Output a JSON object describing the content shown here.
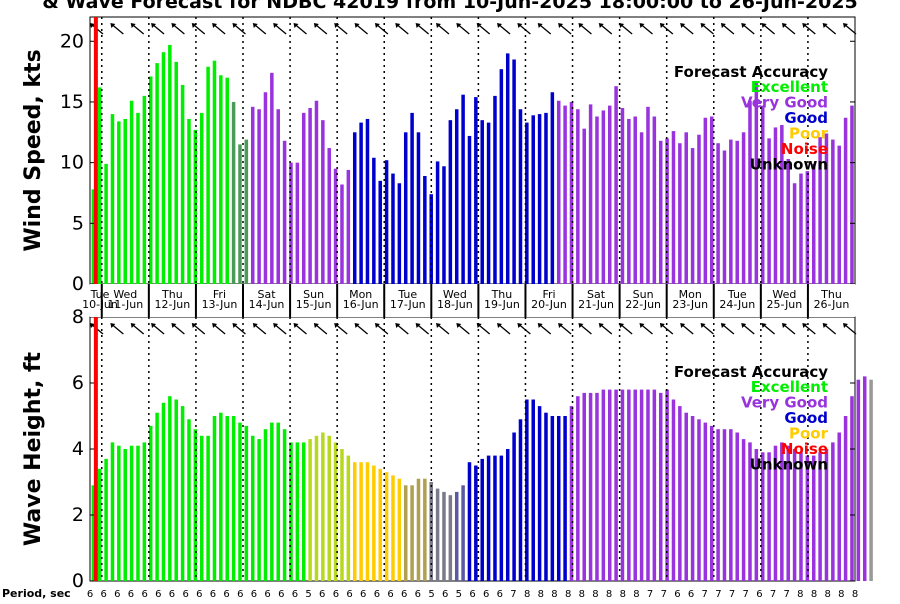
{
  "chart_data": {
    "title": "& Wave Forecast for NDBC 42019 from 10-Jun-2025 18:00:00 to 26-Jun-2025",
    "type": "bar",
    "x_start": "10-Jun-2025 18:00",
    "x_step_hours": 3,
    "colors": {
      "Excellent": "#00ee00",
      "Very Good": "#9933dd",
      "Good": "#0000cc",
      "Poor": "#ffcc00",
      "Noise": "#ff0000",
      "Unknown": "#000000",
      "transition_green": "#4a9a5a",
      "transition_yellow_green": "#b8d820",
      "transition_yellow_gray": "#b0a050",
      "transition_gray": "#7a7a8a",
      "transition_blue_gray": "#5a5aa0"
    },
    "legend": {
      "title": "Forecast Accuracy",
      "entries": [
        "Excellent",
        "Very Good",
        "Good",
        "Poor",
        "Noise",
        "Unknown"
      ],
      "placement": "right"
    },
    "days": [
      {
        "day": "Tue",
        "date": "10-Jun"
      },
      {
        "day": "Wed",
        "date": "11-Jun"
      },
      {
        "day": "Thu",
        "date": "12-Jun"
      },
      {
        "day": "Fri",
        "date": "13-Jun"
      },
      {
        "day": "Sat",
        "date": "14-Jun"
      },
      {
        "day": "Sun",
        "date": "15-Jun"
      },
      {
        "day": "Mon",
        "date": "16-Jun"
      },
      {
        "day": "Tue",
        "date": "17-Jun"
      },
      {
        "day": "Wed",
        "date": "18-Jun"
      },
      {
        "day": "Thu",
        "date": "19-Jun"
      },
      {
        "day": "Fri",
        "date": "20-Jun"
      },
      {
        "day": "Sat",
        "date": "21-Jun"
      },
      {
        "day": "Sun",
        "date": "22-Jun"
      },
      {
        "day": "Mon",
        "date": "23-Jun"
      },
      {
        "day": "Tue",
        "date": "24-Jun"
      },
      {
        "day": "Wed",
        "date": "25-Jun"
      },
      {
        "day": "Thu",
        "date": "26-Jun"
      }
    ],
    "wind": {
      "ylabel": "Wind Speed, kts",
      "ylim": [
        0,
        22
      ],
      "yticks": [
        0,
        5,
        10,
        15,
        20
      ],
      "values": [
        7.8,
        16.2,
        9.9,
        14.0,
        13.4,
        13.6,
        15.1,
        14.1,
        15.5,
        17.1,
        18.2,
        19.1,
        19.7,
        18.3,
        16.4,
        13.6,
        12.7,
        14.1,
        17.9,
        18.4,
        17.2,
        17.0,
        15.0,
        11.5,
        11.9,
        14.6,
        14.4,
        15.8,
        17.4,
        14.4,
        11.8,
        10.0,
        10.0,
        14.1,
        14.5,
        15.1,
        13.5,
        11.2,
        9.5,
        8.2,
        9.4,
        12.5,
        13.3,
        13.6,
        10.4,
        8.5,
        10.2,
        9.1,
        8.3,
        12.5,
        14.1,
        12.5,
        8.9,
        7.4,
        10.1,
        9.7,
        13.5,
        14.4,
        15.6,
        12.2,
        15.4,
        13.5,
        13.3,
        15.5,
        17.7,
        19.0,
        18.5,
        14.4,
        13.3,
        13.9,
        14.0,
        14.1,
        15.8,
        15.1,
        14.7,
        15.0,
        14.4,
        12.8,
        14.8,
        13.8,
        14.3,
        14.7,
        16.3,
        14.5,
        13.6,
        13.8,
        12.5,
        14.6,
        13.8,
        11.8,
        12.0,
        12.6,
        11.6,
        12.5,
        11.2,
        12.3,
        13.7,
        13.8,
        11.6,
        11.0,
        11.9,
        11.8,
        12.5,
        15.1,
        16.6,
        14.7,
        12.0,
        12.9,
        13.1,
        10.3,
        8.3,
        9.1,
        9.3,
        9.9,
        12.1,
        12.4,
        11.9,
        11.4,
        13.7,
        14.7
      ],
      "colors": [
        "Excellent",
        "Excellent",
        "Excellent",
        "Excellent",
        "Excellent",
        "Excellent",
        "Excellent",
        "Excellent",
        "Excellent",
        "Excellent",
        "Excellent",
        "Excellent",
        "Excellent",
        "Excellent",
        "Excellent",
        "Excellent",
        "Excellent",
        "Excellent",
        "Excellent",
        "Excellent",
        "Excellent",
        "Excellent",
        "transition_green",
        "transition_green",
        "transition_green",
        "Very Good",
        "Very Good",
        "Very Good",
        "Very Good",
        "Very Good",
        "Very Good",
        "Very Good",
        "Very Good",
        "Very Good",
        "Very Good",
        "Very Good",
        "Very Good",
        "Very Good",
        "Very Good",
        "Very Good",
        "Very Good",
        "Good",
        "Good",
        "Good",
        "Good",
        "Good",
        "Good",
        "Good",
        "Good",
        "Good",
        "Good",
        "Good",
        "Good",
        "Good",
        "Good",
        "Good",
        "Good",
        "Good",
        "Good",
        "Good",
        "Good",
        "Good",
        "Good",
        "Good",
        "Good",
        "Good",
        "Good",
        "Good",
        "Good",
        "Good",
        "Good",
        "Good",
        "Good",
        "Very Good",
        "Very Good",
        "Very Good",
        "Very Good",
        "Very Good",
        "Very Good",
        "Very Good",
        "Very Good",
        "Very Good",
        "Very Good",
        "Very Good",
        "Very Good",
        "Very Good",
        "Very Good",
        "Very Good",
        "Very Good",
        "Very Good",
        "Very Good",
        "Very Good",
        "Very Good",
        "Very Good",
        "Very Good",
        "Very Good",
        "Very Good",
        "Very Good",
        "Very Good",
        "Very Good",
        "Very Good",
        "Very Good",
        "Very Good",
        "Very Good",
        "Very Good",
        "Very Good",
        "Very Good",
        "Very Good",
        "Very Good",
        "Very Good",
        "Very Good",
        "Very Good",
        "Very Good",
        "Very Good",
        "Very Good",
        "Very Good",
        "Very Good",
        "Very Good",
        "Very Good",
        "Very Good",
        "Very Good"
      ]
    },
    "wave": {
      "ylabel": "Wave Height, ft",
      "ylim": [
        0,
        8
      ],
      "yticks": [
        0,
        2,
        4,
        6,
        8
      ],
      "values": [
        2.9,
        3.4,
        3.7,
        4.2,
        4.1,
        4.0,
        4.1,
        4.1,
        4.2,
        4.7,
        5.1,
        5.4,
        5.6,
        5.5,
        5.3,
        4.9,
        4.6,
        4.4,
        4.4,
        5.0,
        5.1,
        5.0,
        5.0,
        4.8,
        4.7,
        4.4,
        4.3,
        4.6,
        4.8,
        4.8,
        4.6,
        4.2,
        4.2,
        4.2,
        4.3,
        4.4,
        4.5,
        4.4,
        4.2,
        4.0,
        3.8,
        3.6,
        3.6,
        3.6,
        3.5,
        3.4,
        3.3,
        3.2,
        3.1,
        2.9,
        2.9,
        3.1,
        3.1,
        3.0,
        2.8,
        2.7,
        2.6,
        2.7,
        2.9,
        3.6,
        3.5,
        3.7,
        3.8,
        3.8,
        3.8,
        4.0,
        4.5,
        4.9,
        5.5,
        5.5,
        5.3,
        5.1,
        5.0,
        5.0,
        5.0,
        5.3,
        5.6,
        5.7,
        5.7,
        5.7,
        5.8,
        5.8,
        5.8,
        5.8,
        5.8,
        5.8,
        5.8,
        5.8,
        5.8,
        5.7,
        5.8,
        5.5,
        5.3,
        5.1,
        5.0,
        4.9,
        4.8,
        4.7,
        4.6,
        4.6,
        4.6,
        4.5,
        4.3,
        4.2,
        4.0,
        3.9,
        3.9,
        4.1,
        4.2,
        4.1,
        4.0,
        3.9,
        3.8,
        3.8,
        3.9,
        4.0,
        4.2,
        4.5,
        5.0,
        5.6,
        6.1,
        6.2,
        6.1
      ],
      "colors": [
        "Excellent",
        "Excellent",
        "Excellent",
        "Excellent",
        "Excellent",
        "Excellent",
        "Excellent",
        "Excellent",
        "Excellent",
        "Excellent",
        "Excellent",
        "Excellent",
        "Excellent",
        "Excellent",
        "Excellent",
        "Excellent",
        "Excellent",
        "Excellent",
        "Excellent",
        "Excellent",
        "Excellent",
        "Excellent",
        "Excellent",
        "Excellent",
        "Excellent",
        "Excellent",
        "Excellent",
        "Excellent",
        "Excellent",
        "Excellent",
        "Excellent",
        "Excellent",
        "Excellent",
        "Excellent",
        "transition_yellow_green",
        "transition_yellow_green",
        "transition_yellow_green",
        "transition_yellow_green",
        "transition_yellow_green",
        "transition_yellow_green",
        "transition_yellow_green",
        "Poor",
        "Poor",
        "Poor",
        "Poor",
        "Poor",
        "Poor",
        "Poor",
        "Poor",
        "transition_yellow_gray",
        "transition_yellow_gray",
        "transition_yellow_gray",
        "transition_yellow_gray",
        "transition_gray",
        "transition_gray",
        "transition_gray",
        "transition_gray",
        "transition_blue_gray",
        "transition_blue_gray",
        "Good",
        "Good",
        "Good",
        "Good",
        "Good",
        "Good",
        "Good",
        "Good",
        "Good",
        "Good",
        "Good",
        "Good",
        "Good",
        "Good",
        "Good",
        "Good",
        "Very Good",
        "Very Good",
        "Very Good",
        "Very Good",
        "Very Good",
        "Very Good",
        "Very Good",
        "Very Good",
        "Very Good",
        "Very Good",
        "Very Good",
        "Very Good",
        "Very Good",
        "Very Good",
        "Very Good",
        "Very Good",
        "Very Good",
        "Very Good",
        "Very Good",
        "Very Good",
        "Very Good",
        "Very Good",
        "Very Good",
        "Very Good",
        "Very Good",
        "Very Good",
        "Very Good",
        "Very Good",
        "Very Good",
        "Very Good",
        "Very Good",
        "Very Good",
        "Very Good",
        "Very Good",
        "Very Good",
        "Very Good",
        "Very Good",
        "Very Good",
        "Very Good",
        "Very Good",
        "Very Good",
        "Very Good",
        "Very Good",
        "Very Good",
        "Very Good",
        "Very Good",
        "Very Good"
      ]
    },
    "now_marker": "10-Jun-2025 21:00",
    "period": {
      "label": "Period, sec",
      "values": [
        6,
        6,
        6,
        6,
        6,
        6,
        6,
        6,
        6,
        6,
        6,
        6,
        6,
        6,
        6,
        6,
        5,
        6,
        6,
        6,
        6,
        6,
        6,
        6,
        6,
        5,
        6,
        5,
        6,
        6,
        6,
        7,
        8,
        8,
        8,
        8,
        8,
        8,
        8,
        8,
        8,
        7,
        7,
        6,
        6,
        7,
        7,
        7,
        7,
        6,
        7,
        7,
        8,
        8,
        8,
        8,
        8
      ]
    }
  }
}
